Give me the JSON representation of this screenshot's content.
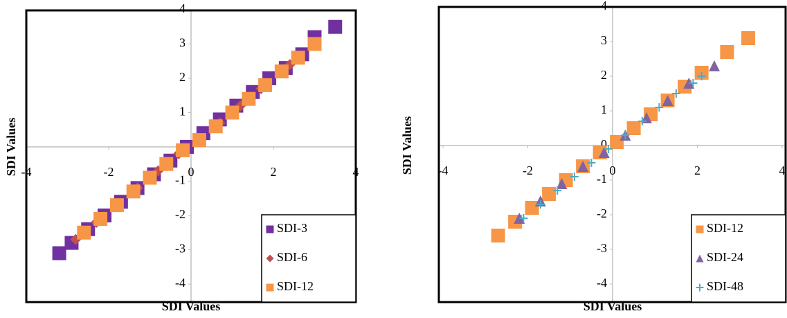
{
  "chart_data": [
    {
      "type": "scatter",
      "xlabel": "SDI Values",
      "ylabel": "SDI Values",
      "xlim": [
        -4,
        4
      ],
      "ylim": [
        -4,
        4
      ],
      "xticks": [
        -4,
        -2,
        0,
        2,
        4
      ],
      "yticks": [
        -4,
        -3,
        -2,
        -1,
        0,
        1,
        2,
        3,
        4
      ],
      "legend": "lower right",
      "series": [
        {
          "name": "SDI-3",
          "color": "#7030a0",
          "marker": "square",
          "x": [
            -3.2,
            -2.9,
            -2.5,
            -2.1,
            -1.7,
            -1.3,
            -0.9,
            -0.5,
            -0.1,
            0.3,
            0.7,
            1.1,
            1.5,
            1.9,
            2.3,
            2.7,
            3.0,
            3.5
          ],
          "y": [
            -3.1,
            -2.8,
            -2.4,
            -2.0,
            -1.6,
            -1.2,
            -0.8,
            -0.4,
            0.0,
            0.4,
            0.8,
            1.2,
            1.6,
            2.0,
            2.3,
            2.7,
            3.2,
            3.5
          ]
        },
        {
          "name": "SDI-6",
          "color": "#c0504d",
          "marker": "diamond",
          "x": [
            -2.8,
            -2.3,
            -1.8,
            -1.3,
            -0.8,
            -0.3,
            0.2,
            0.7,
            1.2,
            1.7,
            2.4
          ],
          "y": [
            -2.7,
            -2.2,
            -1.7,
            -1.2,
            -0.7,
            -0.2,
            0.2,
            0.7,
            1.2,
            1.7,
            2.4
          ]
        },
        {
          "name": "SDI-12",
          "color": "#f79646",
          "marker": "square",
          "x": [
            -2.6,
            -2.2,
            -1.8,
            -1.4,
            -1.0,
            -0.6,
            -0.2,
            0.2,
            0.6,
            1.0,
            1.4,
            1.8,
            2.2,
            2.6,
            3.0
          ],
          "y": [
            -2.5,
            -2.1,
            -1.7,
            -1.3,
            -0.9,
            -0.5,
            -0.1,
            0.2,
            0.6,
            1.0,
            1.4,
            1.8,
            2.2,
            2.6,
            3.0
          ]
        }
      ]
    },
    {
      "type": "scatter",
      "xlabel": "SDI Values",
      "ylabel": "SDI Values",
      "xlim": [
        -4,
        4
      ],
      "ylim": [
        -4,
        4
      ],
      "xticks": [
        -4,
        -2,
        0,
        2,
        4
      ],
      "yticks": [
        -4,
        -3,
        -2,
        -1,
        0,
        1,
        2,
        3,
        4
      ],
      "legend": "lower right",
      "series": [
        {
          "name": "SDI-12",
          "color": "#f79646",
          "marker": "square",
          "x": [
            -2.7,
            -2.3,
            -1.9,
            -1.5,
            -1.1,
            -0.7,
            -0.3,
            0.1,
            0.5,
            0.9,
            1.3,
            1.7,
            2.1,
            2.7,
            3.2
          ],
          "y": [
            -2.6,
            -2.2,
            -1.8,
            -1.4,
            -1.0,
            -0.6,
            -0.2,
            0.1,
            0.5,
            0.9,
            1.3,
            1.7,
            2.1,
            2.7,
            3.1
          ]
        },
        {
          "name": "SDI-24",
          "color": "#8064a2",
          "marker": "triangle",
          "x": [
            -2.2,
            -1.7,
            -1.2,
            -0.7,
            -0.2,
            0.3,
            0.8,
            1.3,
            1.8,
            2.4
          ],
          "y": [
            -2.1,
            -1.6,
            -1.1,
            -0.6,
            -0.2,
            0.3,
            0.8,
            1.3,
            1.8,
            2.3
          ]
        },
        {
          "name": "SDI-48",
          "color": "#4bacc6",
          "marker": "plus",
          "x": [
            -2.1,
            -1.7,
            -1.3,
            -0.9,
            -0.5,
            -0.1,
            0.3,
            0.7,
            1.1,
            1.5,
            1.9,
            2.1
          ],
          "y": [
            -2.1,
            -1.7,
            -1.3,
            -0.9,
            -0.5,
            -0.1,
            0.3,
            0.7,
            1.1,
            1.5,
            1.8,
            2.0
          ]
        }
      ]
    }
  ]
}
